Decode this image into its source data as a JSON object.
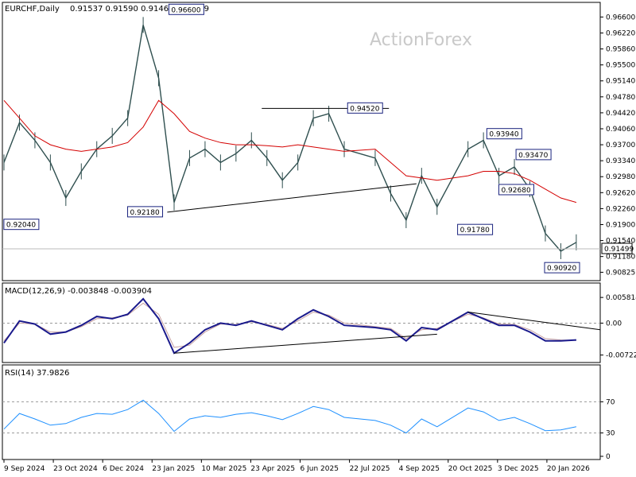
{
  "watermark": "ActionForex",
  "chart_data": [
    {
      "type": "line",
      "name": "price",
      "title": "EURCHF,Daily",
      "ohlc_header": "0.91537 0.91590 0.91464 0.91499",
      "current_price_label": "0.91499",
      "ylim": [
        0.9069,
        0.9682
      ],
      "yticks": [
        0.90825,
        0.9118,
        0.9154,
        0.919,
        0.9226,
        0.9262,
        0.9298,
        0.9334,
        0.937,
        0.9406,
        0.9442,
        0.9478,
        0.9514,
        0.955,
        0.9586,
        0.9622,
        0.9658
      ],
      "ytick_labels": [
        "0.90825",
        "0.91180",
        "0.91540",
        "0.91900",
        "0.92260",
        "0.92620",
        "0.92980",
        "0.93340",
        "0.93700",
        "0.94060",
        "0.94420",
        "0.94780",
        "0.95140",
        "0.95500",
        "0.95860",
        "0.96220",
        "0.96600"
      ],
      "xlabels": [
        "9 Sep 2024",
        "23 Oct 2024",
        "6 Dec 2024",
        "23 Jan 2025",
        "10 Mar 2025",
        "23 Apr 2025",
        "6 Jun 2025",
        "22 Jul 2025",
        "4 Sep 2025",
        "20 Oct 2025",
        "3 Dec 2025",
        "20 Jan 2026"
      ],
      "x_index": [
        0,
        9,
        18,
        27,
        36,
        45,
        54,
        63,
        72,
        81,
        90,
        99,
        108,
        117,
        126,
        135,
        144,
        153,
        162,
        171,
        180,
        189,
        198,
        216,
        225,
        234,
        243,
        252,
        270,
        279,
        288,
        297,
        306,
        315,
        324,
        333
      ],
      "close": [
        0.933,
        0.942,
        0.938,
        0.933,
        0.925,
        0.931,
        0.936,
        0.939,
        0.943,
        0.964,
        0.952,
        0.924,
        0.934,
        0.936,
        0.933,
        0.935,
        0.938,
        0.934,
        0.929,
        0.933,
        0.943,
        0.944,
        0.936,
        0.934,
        0.926,
        0.92,
        0.93,
        0.923,
        0.936,
        0.938,
        0.93,
        0.932,
        0.927,
        0.917,
        0.913,
        0.915
      ],
      "sma_close": [
        0.947,
        0.943,
        0.939,
        0.937,
        0.936,
        0.9355,
        0.936,
        0.9365,
        0.9375,
        0.941,
        0.947,
        0.944,
        0.94,
        0.9385,
        0.9375,
        0.937,
        0.937,
        0.9368,
        0.9365,
        0.937,
        0.9365,
        0.936,
        0.9355,
        0.936,
        0.933,
        0.93,
        0.9295,
        0.929,
        0.93,
        0.931,
        0.931,
        0.9305,
        0.929,
        0.927,
        0.925,
        0.924
      ],
      "annotations": [
        "0.92040",
        "0.96600",
        "0.92180",
        "0.94520",
        "0.93940",
        "0.93470",
        "0.92680",
        "0.91780",
        "0.90920"
      ],
      "grid": false
    },
    {
      "type": "line",
      "name": "macd",
      "title": "MACD(12,26,9) -0.003848 -0.003904",
      "ylim": [
        -0.0082,
        0.0062
      ],
      "yticks": [
        0.005814,
        0.0,
        -0.007222
      ],
      "ytick_labels": [
        "0.005814",
        "0.00",
        "-0.007222"
      ],
      "x_index": [
        0,
        9,
        18,
        27,
        36,
        45,
        54,
        63,
        72,
        81,
        90,
        99,
        108,
        117,
        126,
        135,
        144,
        153,
        162,
        171,
        180,
        189,
        198,
        216,
        225,
        234,
        243,
        252,
        270,
        279,
        288,
        297,
        306,
        315,
        324,
        333
      ],
      "macd": [
        -0.0045,
        0.0005,
        -0.0002,
        -0.0025,
        -0.002,
        -0.0005,
        0.0015,
        0.001,
        0.002,
        0.0055,
        0.001,
        -0.0068,
        -0.0045,
        -0.0015,
        0.0,
        -0.0005,
        0.0005,
        -0.0005,
        -0.0015,
        0.001,
        0.003,
        0.0015,
        -0.0005,
        -0.001,
        -0.0015,
        -0.004,
        -0.001,
        -0.0015,
        0.0025,
        0.001,
        -0.0005,
        -0.0005,
        -0.002,
        -0.004,
        -0.004,
        -0.0038
      ],
      "signal": [
        -0.004,
        0.0,
        -0.0002,
        -0.002,
        -0.002,
        -0.0008,
        0.001,
        0.0012,
        0.0018,
        0.0045,
        0.002,
        -0.0055,
        -0.005,
        -0.002,
        -0.0002,
        -0.0003,
        0.0003,
        -0.0003,
        -0.0012,
        0.0005,
        0.0025,
        0.0018,
        0.0,
        -0.0008,
        -0.0012,
        -0.0035,
        -0.0015,
        -0.0012,
        0.002,
        0.0012,
        -0.0002,
        -0.0003,
        -0.0015,
        -0.0035,
        -0.0038,
        -0.0039
      ],
      "trendlines": 2,
      "grid": false
    },
    {
      "type": "line",
      "name": "rsi",
      "title": "RSI(14) 37.9826",
      "ylim": [
        0,
        100
      ],
      "yticks": [
        70,
        30,
        0
      ],
      "ytick_labels": [
        "70",
        "30",
        "0"
      ],
      "x_index": [
        0,
        9,
        18,
        27,
        36,
        45,
        54,
        63,
        72,
        81,
        90,
        99,
        108,
        117,
        126,
        135,
        144,
        153,
        162,
        171,
        180,
        189,
        198,
        216,
        225,
        234,
        243,
        252,
        270,
        279,
        288,
        297,
        306,
        315,
        324,
        333
      ],
      "rsi": [
        35,
        55,
        48,
        40,
        42,
        50,
        55,
        54,
        60,
        72,
        55,
        32,
        48,
        52,
        50,
        54,
        56,
        52,
        47,
        55,
        64,
        60,
        50,
        46,
        40,
        30,
        48,
        38,
        62,
        57,
        46,
        50,
        42,
        33,
        34,
        38
      ],
      "grid": false
    }
  ],
  "colors": {
    "price_bars": "#2f4f4f",
    "sma": "#d40000",
    "macd": "#1a1a8c",
    "signal": "#c7a0a0",
    "rsi": "#1e90ff",
    "annotation": "#1a237e",
    "frame": "#000000",
    "guide": "#999999"
  }
}
